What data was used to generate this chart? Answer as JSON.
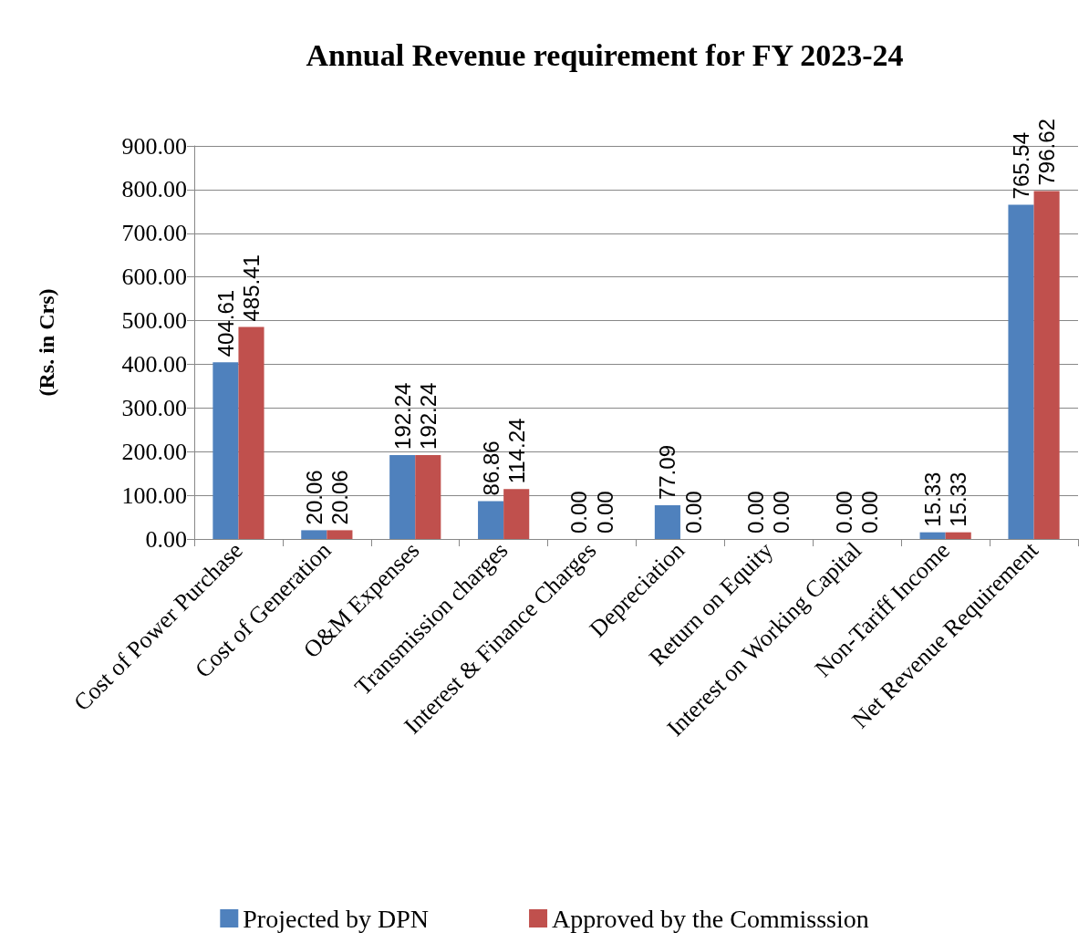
{
  "chart_data": {
    "type": "bar",
    "title": "Annual Revenue requirement for FY 2023-24",
    "ylabel": "(Rs. in Crs)",
    "categories": [
      "Cost of Power Purchase",
      "Cost of Generation",
      "O&M Expenses",
      "Transmission charges",
      "Interest & Finance Charges",
      "Depreciation",
      "Return on Equity",
      "Interest on Working Capital",
      "Non-Tariff Income",
      "Net Revenue Requirement"
    ],
    "series": [
      {
        "name": "Projected by DPN",
        "color": "#4f81bd",
        "values": [
          404.61,
          20.06,
          192.24,
          86.86,
          0,
          77.09,
          0,
          0,
          15.33,
          765.54
        ],
        "value_labels": [
          "404.61",
          "20.06",
          "192.24",
          "86.86",
          "0.00",
          "77.09",
          "0.00",
          "0.00",
          "15.33",
          "765.54"
        ]
      },
      {
        "name": "Approved by the Commisssion",
        "color": "#c0504d",
        "values": [
          485.41,
          20.06,
          192.24,
          114.24,
          0,
          0,
          0,
          0,
          15.33,
          796.62
        ],
        "value_labels": [
          "485.41",
          "20.06",
          "192.24",
          "114.24",
          "0.00",
          "0.00",
          "0.00",
          "0.00",
          "15.33",
          "796.62"
        ]
      }
    ],
    "ylim": [
      0,
      900
    ],
    "yticks": [
      {
        "value": 0,
        "label": "0.00"
      },
      {
        "value": 100,
        "label": "100.00"
      },
      {
        "value": 200,
        "label": "200.00"
      },
      {
        "value": 300,
        "label": "300.00"
      },
      {
        "value": 400,
        "label": "400.00"
      },
      {
        "value": 500,
        "label": "500.00"
      },
      {
        "value": 600,
        "label": "600.00"
      },
      {
        "value": 700,
        "label": "700.00"
      },
      {
        "value": 800,
        "label": "800.00"
      },
      {
        "value": 900,
        "label": "900.00"
      }
    ],
    "grid": "y",
    "legend": "bottom"
  }
}
